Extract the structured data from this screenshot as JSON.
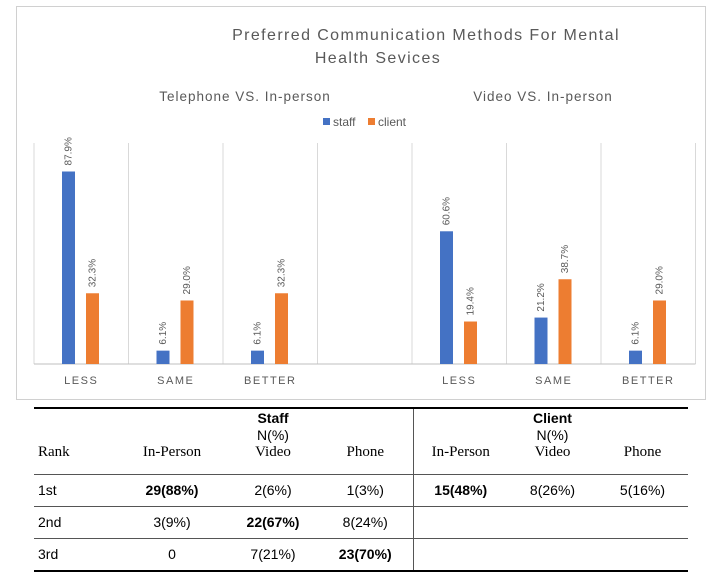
{
  "chart_data": {
    "type": "bar",
    "title": "Preferred Communication Methods For Mental Health Sevices",
    "title_lines": [
      "Preferred Communication Methods For Mental",
      "Health Sevices"
    ],
    "legend": [
      "staff",
      "client"
    ],
    "legend_position": "top-center",
    "colors": {
      "staff": "#4472C4",
      "client": "#ED7D31"
    },
    "grid": "vertical category separators",
    "ylim": [
      0,
      100
    ],
    "groups": [
      {
        "subtitle": "Telephone VS. In-person",
        "categories": [
          "LESS",
          "SAME",
          "BETTER"
        ],
        "series": [
          {
            "name": "staff",
            "values": [
              87.9,
              6.1,
              6.1
            ],
            "labels": [
              "87.9%",
              "6.1%",
              "6.1%"
            ]
          },
          {
            "name": "client",
            "values": [
              32.3,
              29.0,
              32.3
            ],
            "labels": [
              "32.3%",
              "29.0%",
              "32.3%"
            ]
          }
        ]
      },
      {
        "subtitle": "Video VS. In-person",
        "categories": [
          "LESS",
          "SAME",
          "BETTER"
        ],
        "series": [
          {
            "name": "staff",
            "values": [
              60.6,
              21.2,
              6.1
            ],
            "labels": [
              "60.6%",
              "21.2%",
              "6.1%"
            ]
          },
          {
            "name": "client",
            "values": [
              19.4,
              38.7,
              29.0
            ],
            "labels": [
              "19.4%",
              "38.7%",
              "29.0%"
            ]
          }
        ]
      }
    ]
  },
  "table": {
    "staff_header": "Staff",
    "client_header": "Client",
    "staff_unit": "N(%)",
    "client_unit": "N(%)",
    "columns": [
      "Rank",
      "In-Person",
      "Video",
      "Phone",
      "In-Person",
      "Video",
      "Phone"
    ],
    "rows": [
      {
        "rank": "1st",
        "cells": [
          "29(88%)",
          "2(6%)",
          "1(3%)",
          "15(48%)",
          "8(26%)",
          "5(16%)"
        ]
      },
      {
        "rank": "2nd",
        "cells": [
          "3(9%)",
          "22(67%)",
          "8(24%)",
          "",
          "",
          ""
        ]
      },
      {
        "rank": "3rd",
        "cells": [
          "0",
          "7(21%)",
          "23(70%)",
          "",
          "",
          ""
        ]
      }
    ]
  }
}
